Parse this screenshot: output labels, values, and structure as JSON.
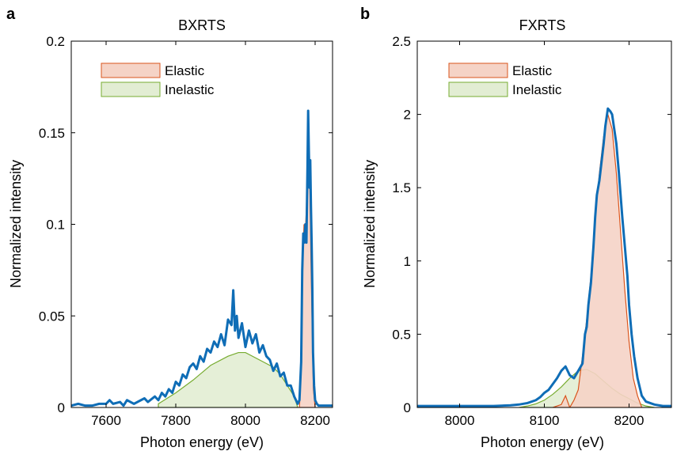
{
  "chart_data": [
    {
      "type": "area",
      "panel_label": "a",
      "title": "BXRTS",
      "xlabel": "Photon energy (eV)",
      "ylabel": "Normalized intensity",
      "xlim": [
        7500,
        8250
      ],
      "ylim": [
        0,
        0.2
      ],
      "xticks": [
        7600,
        7800,
        8000,
        8200
      ],
      "yticks": [
        0,
        0.05,
        0.1,
        0.15,
        0.2
      ],
      "xtick_labels": [
        "7600",
        "7800",
        "8000",
        "8200"
      ],
      "ytick_labels": [
        "0",
        "0.05",
        "0.1",
        "0.15",
        "0.2"
      ],
      "legend": {
        "position": "top-left",
        "entries": [
          "Elastic",
          "Inelastic"
        ]
      },
      "series": [
        {
          "name": "Elastic",
          "style": "filled-area",
          "edge_color": "#d9541c",
          "fill_color": "#f5d3c6",
          "x": [
            8145,
            8155,
            8160,
            8165,
            8168,
            8172,
            8175,
            8178,
            8180,
            8182,
            8185,
            8188,
            8191,
            8195,
            8200
          ],
          "values": [
            0,
            0.0,
            0.02,
            0.08,
            0.1,
            0.095,
            0.11,
            0.14,
            0.16,
            0.14,
            0.12,
            0.08,
            0.05,
            0.01,
            0
          ]
        },
        {
          "name": "Inelastic",
          "style": "filled-area",
          "edge_color": "#77ac30",
          "fill_color": "#e2edd3",
          "x": [
            7750,
            7800,
            7850,
            7900,
            7950,
            7980,
            8000,
            8050,
            8080,
            8100,
            8120,
            8140,
            8150
          ],
          "values": [
            0.002,
            0.008,
            0.015,
            0.023,
            0.028,
            0.03,
            0.03,
            0.025,
            0.022,
            0.018,
            0.012,
            0.006,
            0
          ]
        },
        {
          "name": "",
          "style": "line",
          "color": "#0f6db6",
          "x": [
            7500,
            7520,
            7540,
            7560,
            7580,
            7600,
            7610,
            7620,
            7640,
            7650,
            7660,
            7680,
            7700,
            7710,
            7720,
            7740,
            7750,
            7760,
            7770,
            7780,
            7790,
            7800,
            7810,
            7820,
            7830,
            7840,
            7850,
            7860,
            7870,
            7880,
            7890,
            7900,
            7910,
            7920,
            7930,
            7940,
            7950,
            7960,
            7965,
            7970,
            7975,
            7980,
            7990,
            8000,
            8010,
            8020,
            8030,
            8040,
            8050,
            8060,
            8070,
            8080,
            8090,
            8100,
            8110,
            8120,
            8130,
            8140,
            8150,
            8155,
            8160,
            8163,
            8166,
            8169,
            8172,
            8175,
            8178,
            8180,
            8182,
            8184,
            8186,
            8188,
            8190,
            8192,
            8194,
            8197,
            8200,
            8205,
            8210,
            8220,
            8230,
            8240,
            8250
          ],
          "values": [
            0.001,
            0.002,
            0.001,
            0.001,
            0.002,
            0.002,
            0.004,
            0.002,
            0.003,
            0.001,
            0.004,
            0.002,
            0.004,
            0.005,
            0.003,
            0.006,
            0.004,
            0.008,
            0.006,
            0.01,
            0.008,
            0.014,
            0.012,
            0.018,
            0.016,
            0.022,
            0.024,
            0.021,
            0.028,
            0.025,
            0.032,
            0.03,
            0.036,
            0.033,
            0.04,
            0.034,
            0.048,
            0.045,
            0.064,
            0.042,
            0.05,
            0.038,
            0.046,
            0.033,
            0.042,
            0.035,
            0.04,
            0.03,
            0.034,
            0.028,
            0.026,
            0.02,
            0.024,
            0.017,
            0.019,
            0.012,
            0.012,
            0.006,
            0.002,
            0.004,
            0.025,
            0.075,
            0.095,
            0.09,
            0.1,
            0.09,
            0.13,
            0.162,
            0.14,
            0.12,
            0.135,
            0.11,
            0.09,
            0.065,
            0.03,
            0.012,
            0.004,
            0.002,
            0.001,
            0.001,
            0.001,
            0.001,
            0.001
          ]
        }
      ]
    },
    {
      "type": "area",
      "panel_label": "b",
      "title": "FXRTS",
      "xlabel": "Photon energy (eV)",
      "ylabel": "Normalized intensity",
      "xlim": [
        7950,
        8250
      ],
      "ylim": [
        0,
        2.5
      ],
      "xticks": [
        8000,
        8100,
        8200
      ],
      "yticks": [
        0,
        0.5,
        1,
        1.5,
        2,
        2.5
      ],
      "xtick_labels": [
        "8000",
        "8100",
        "8200"
      ],
      "ytick_labels": [
        "0",
        "0.5",
        "1",
        "1.5",
        "2",
        "2.5"
      ],
      "legend": {
        "position": "top-left",
        "entries": [
          "Elastic",
          "Inelastic"
        ]
      },
      "series": [
        {
          "name": "Elastic",
          "style": "filled-area",
          "edge_color": "#d9541c",
          "fill_color": "#f5d3c6",
          "x": [
            8110,
            8120,
            8125,
            8130,
            8135,
            8140,
            8145,
            8150,
            8155,
            8160,
            8165,
            8170,
            8175,
            8180,
            8185,
            8190,
            8195,
            8200,
            8205,
            8210,
            8215
          ],
          "values": [
            0,
            0.02,
            0.08,
            0.0,
            0.05,
            0.12,
            0.35,
            0.6,
            0.9,
            1.3,
            1.6,
            1.85,
            2.0,
            1.9,
            1.6,
            1.2,
            0.8,
            0.45,
            0.2,
            0.08,
            0
          ]
        },
        {
          "name": "Inelastic",
          "style": "filled-area",
          "edge_color": "#77ac30",
          "fill_color": "#e2edd3",
          "x": [
            8070,
            8080,
            8090,
            8100,
            8110,
            8120,
            8130,
            8140,
            8150,
            8160,
            8170,
            8180,
            8190,
            8200,
            8210,
            8220,
            8230
          ],
          "values": [
            0.0,
            0.01,
            0.025,
            0.05,
            0.09,
            0.14,
            0.2,
            0.25,
            0.26,
            0.23,
            0.18,
            0.13,
            0.09,
            0.06,
            0.03,
            0.01,
            0.0
          ]
        },
        {
          "name": "",
          "style": "line",
          "color": "#0f6db6",
          "x": [
            7950,
            7980,
            8000,
            8020,
            8040,
            8060,
            8070,
            8080,
            8090,
            8095,
            8100,
            8105,
            8110,
            8115,
            8120,
            8125,
            8130,
            8135,
            8140,
            8145,
            8148,
            8150,
            8152,
            8155,
            8158,
            8160,
            8162,
            8165,
            8168,
            8170,
            8172,
            8175,
            8178,
            8180,
            8182,
            8185,
            8188,
            8190,
            8192,
            8195,
            8198,
            8200,
            8203,
            8206,
            8210,
            8215,
            8220,
            8230,
            8240,
            8250
          ],
          "values": [
            0.01,
            0.01,
            0.01,
            0.01,
            0.01,
            0.015,
            0.02,
            0.03,
            0.05,
            0.07,
            0.1,
            0.12,
            0.16,
            0.2,
            0.25,
            0.28,
            0.22,
            0.2,
            0.25,
            0.3,
            0.5,
            0.55,
            0.7,
            0.85,
            1.1,
            1.3,
            1.45,
            1.55,
            1.7,
            1.8,
            1.92,
            2.04,
            2.02,
            2.0,
            1.92,
            1.8,
            1.6,
            1.45,
            1.3,
            1.1,
            0.9,
            0.7,
            0.5,
            0.35,
            0.2,
            0.08,
            0.04,
            0.02,
            0.01,
            0.01
          ]
        }
      ]
    }
  ]
}
